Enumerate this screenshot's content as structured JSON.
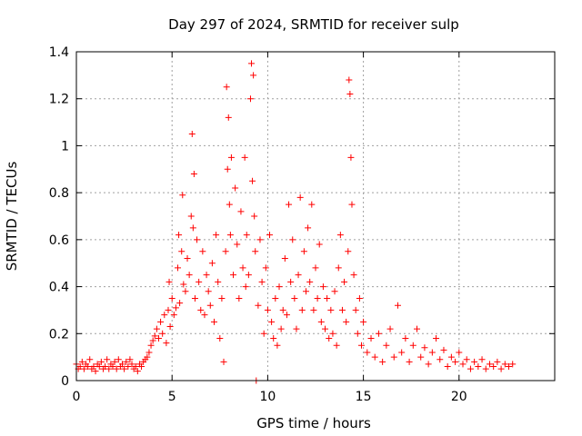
{
  "chart_data": {
    "type": "scatter",
    "title": "Day 297 of 2024, SRMTID for receiver sulp",
    "xlabel": "GPS time / hours",
    "ylabel": "SRMTID / TECUs",
    "xlim": [
      0,
      25
    ],
    "ylim": [
      0,
      1.4
    ],
    "xticks": [
      0,
      5,
      10,
      15,
      20
    ],
    "xtick_labels": [
      "0",
      "5",
      "10",
      "15",
      "20"
    ],
    "yticks": [
      0,
      0.2,
      0.4,
      0.6,
      0.8,
      1.0,
      1.2,
      1.4
    ],
    "ytick_labels": [
      "0",
      "0.2",
      "0.4",
      "0.6",
      "0.8",
      "1",
      "1.2",
      "1.4"
    ],
    "grid": true,
    "marker": "plus",
    "color": "#ff0000",
    "series": [
      {
        "name": "SRMTID",
        "points": [
          [
            0.0,
            0.07
          ],
          [
            0.1,
            0.05
          ],
          [
            0.2,
            0.06
          ],
          [
            0.3,
            0.08
          ],
          [
            0.4,
            0.05
          ],
          [
            0.5,
            0.07
          ],
          [
            0.6,
            0.06
          ],
          [
            0.7,
            0.09
          ],
          [
            0.8,
            0.05
          ],
          [
            0.9,
            0.06
          ],
          [
            1.0,
            0.04
          ],
          [
            1.1,
            0.07
          ],
          [
            1.2,
            0.06
          ],
          [
            1.3,
            0.08
          ],
          [
            1.4,
            0.05
          ],
          [
            1.5,
            0.06
          ],
          [
            1.6,
            0.09
          ],
          [
            1.7,
            0.05
          ],
          [
            1.8,
            0.07
          ],
          [
            1.9,
            0.06
          ],
          [
            2.0,
            0.08
          ],
          [
            2.1,
            0.05
          ],
          [
            2.2,
            0.09
          ],
          [
            2.3,
            0.06
          ],
          [
            2.4,
            0.07
          ],
          [
            2.5,
            0.05
          ],
          [
            2.6,
            0.08
          ],
          [
            2.7,
            0.06
          ],
          [
            2.8,
            0.09
          ],
          [
            2.9,
            0.07
          ],
          [
            3.0,
            0.05
          ],
          [
            3.1,
            0.06
          ],
          [
            3.2,
            0.04
          ],
          [
            3.3,
            0.07
          ],
          [
            3.4,
            0.06
          ],
          [
            3.5,
            0.08
          ],
          [
            3.6,
            0.09
          ],
          [
            3.7,
            0.1
          ],
          [
            3.8,
            0.12
          ],
          [
            3.9,
            0.15
          ],
          [
            4.0,
            0.17
          ],
          [
            4.1,
            0.19
          ],
          [
            4.2,
            0.22
          ],
          [
            4.3,
            0.18
          ],
          [
            4.4,
            0.25
          ],
          [
            4.5,
            0.2
          ],
          [
            4.6,
            0.28
          ],
          [
            4.7,
            0.16
          ],
          [
            4.8,
            0.3
          ],
          [
            4.85,
            0.42
          ],
          [
            4.9,
            0.23
          ],
          [
            5.0,
            0.35
          ],
          [
            5.1,
            0.28
          ],
          [
            5.2,
            0.31
          ],
          [
            5.3,
            0.48
          ],
          [
            5.35,
            0.62
          ],
          [
            5.4,
            0.33
          ],
          [
            5.5,
            0.55
          ],
          [
            5.55,
            0.79
          ],
          [
            5.6,
            0.41
          ],
          [
            5.7,
            0.38
          ],
          [
            5.8,
            0.52
          ],
          [
            5.9,
            0.45
          ],
          [
            6.0,
            0.7
          ],
          [
            6.05,
            1.05
          ],
          [
            6.1,
            0.65
          ],
          [
            6.15,
            0.88
          ],
          [
            6.2,
            0.35
          ],
          [
            6.3,
            0.6
          ],
          [
            6.4,
            0.42
          ],
          [
            6.5,
            0.3
          ],
          [
            6.6,
            0.55
          ],
          [
            6.7,
            0.28
          ],
          [
            6.8,
            0.45
          ],
          [
            6.9,
            0.38
          ],
          [
            7.0,
            0.32
          ],
          [
            7.1,
            0.5
          ],
          [
            7.2,
            0.25
          ],
          [
            7.3,
            0.62
          ],
          [
            7.4,
            0.42
          ],
          [
            7.5,
            0.18
          ],
          [
            7.6,
            0.35
          ],
          [
            7.7,
            0.08
          ],
          [
            7.8,
            0.55
          ],
          [
            7.85,
            1.25
          ],
          [
            7.9,
            0.9
          ],
          [
            7.95,
            1.12
          ],
          [
            8.0,
            0.75
          ],
          [
            8.05,
            0.62
          ],
          [
            8.1,
            0.95
          ],
          [
            8.2,
            0.45
          ],
          [
            8.3,
            0.82
          ],
          [
            8.4,
            0.58
          ],
          [
            8.5,
            0.35
          ],
          [
            8.6,
            0.72
          ],
          [
            8.7,
            0.48
          ],
          [
            8.8,
            0.95
          ],
          [
            8.85,
            0.4
          ],
          [
            8.9,
            0.62
          ],
          [
            9.0,
            0.45
          ],
          [
            9.1,
            1.2
          ],
          [
            9.15,
            1.35
          ],
          [
            9.2,
            0.85
          ],
          [
            9.25,
            1.3
          ],
          [
            9.3,
            0.7
          ],
          [
            9.35,
            0.55
          ],
          [
            9.4,
            0.0
          ],
          [
            9.5,
            0.32
          ],
          [
            9.6,
            0.6
          ],
          [
            9.7,
            0.42
          ],
          [
            9.8,
            0.2
          ],
          [
            9.9,
            0.48
          ],
          [
            10.0,
            0.3
          ],
          [
            10.1,
            0.62
          ],
          [
            10.2,
            0.25
          ],
          [
            10.3,
            0.18
          ],
          [
            10.4,
            0.35
          ],
          [
            10.5,
            0.15
          ],
          [
            10.6,
            0.4
          ],
          [
            10.7,
            0.22
          ],
          [
            10.8,
            0.3
          ],
          [
            10.9,
            0.52
          ],
          [
            11.0,
            0.28
          ],
          [
            11.1,
            0.75
          ],
          [
            11.2,
            0.42
          ],
          [
            11.3,
            0.6
          ],
          [
            11.4,
            0.35
          ],
          [
            11.5,
            0.22
          ],
          [
            11.6,
            0.45
          ],
          [
            11.7,
            0.78
          ],
          [
            11.8,
            0.3
          ],
          [
            11.9,
            0.55
          ],
          [
            12.0,
            0.38
          ],
          [
            12.1,
            0.65
          ],
          [
            12.2,
            0.42
          ],
          [
            12.3,
            0.75
          ],
          [
            12.4,
            0.3
          ],
          [
            12.5,
            0.48
          ],
          [
            12.6,
            0.35
          ],
          [
            12.7,
            0.58
          ],
          [
            12.8,
            0.25
          ],
          [
            12.9,
            0.4
          ],
          [
            13.0,
            0.22
          ],
          [
            13.1,
            0.35
          ],
          [
            13.2,
            0.18
          ],
          [
            13.3,
            0.3
          ],
          [
            13.4,
            0.2
          ],
          [
            13.5,
            0.38
          ],
          [
            13.6,
            0.15
          ],
          [
            13.7,
            0.48
          ],
          [
            13.8,
            0.62
          ],
          [
            13.9,
            0.3
          ],
          [
            14.0,
            0.42
          ],
          [
            14.1,
            0.25
          ],
          [
            14.2,
            0.55
          ],
          [
            14.25,
            1.28
          ],
          [
            14.3,
            1.22
          ],
          [
            14.35,
            0.95
          ],
          [
            14.4,
            0.75
          ],
          [
            14.5,
            0.45
          ],
          [
            14.6,
            0.3
          ],
          [
            14.7,
            0.2
          ],
          [
            14.8,
            0.35
          ],
          [
            14.9,
            0.15
          ],
          [
            15.0,
            0.25
          ],
          [
            15.2,
            0.12
          ],
          [
            15.4,
            0.18
          ],
          [
            15.6,
            0.1
          ],
          [
            15.8,
            0.2
          ],
          [
            16.0,
            0.08
          ],
          [
            16.2,
            0.15
          ],
          [
            16.4,
            0.22
          ],
          [
            16.6,
            0.1
          ],
          [
            16.8,
            0.32
          ],
          [
            17.0,
            0.12
          ],
          [
            17.2,
            0.18
          ],
          [
            17.4,
            0.08
          ],
          [
            17.6,
            0.15
          ],
          [
            17.8,
            0.22
          ],
          [
            18.0,
            0.1
          ],
          [
            18.2,
            0.14
          ],
          [
            18.4,
            0.07
          ],
          [
            18.6,
            0.12
          ],
          [
            18.8,
            0.18
          ],
          [
            19.0,
            0.09
          ],
          [
            19.2,
            0.13
          ],
          [
            19.4,
            0.06
          ],
          [
            19.6,
            0.1
          ],
          [
            19.8,
            0.08
          ],
          [
            20.0,
            0.12
          ],
          [
            20.2,
            0.07
          ],
          [
            20.4,
            0.09
          ],
          [
            20.6,
            0.05
          ],
          [
            20.8,
            0.08
          ],
          [
            21.0,
            0.06
          ],
          [
            21.2,
            0.09
          ],
          [
            21.4,
            0.05
          ],
          [
            21.6,
            0.07
          ],
          [
            21.8,
            0.06
          ],
          [
            22.0,
            0.08
          ],
          [
            22.2,
            0.05
          ],
          [
            22.4,
            0.07
          ],
          [
            22.6,
            0.06
          ],
          [
            22.8,
            0.07
          ]
        ]
      }
    ]
  }
}
